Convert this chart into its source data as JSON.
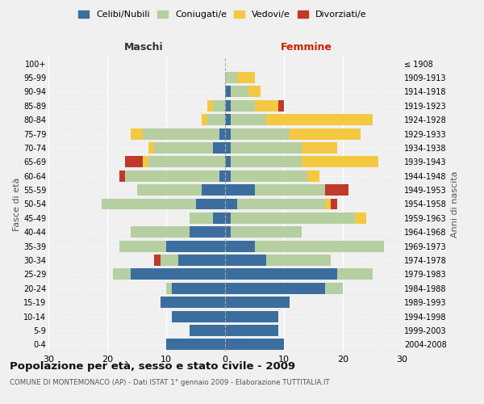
{
  "age_groups_bottom_to_top": [
    "0-4",
    "5-9",
    "10-14",
    "15-19",
    "20-24",
    "25-29",
    "30-34",
    "35-39",
    "40-44",
    "45-49",
    "50-54",
    "55-59",
    "60-64",
    "65-69",
    "70-74",
    "75-79",
    "80-84",
    "85-89",
    "90-94",
    "95-99",
    "100+"
  ],
  "birth_years_bottom_to_top": [
    "2004-2008",
    "1999-2003",
    "1994-1998",
    "1989-1993",
    "1984-1988",
    "1979-1983",
    "1974-1978",
    "1969-1973",
    "1964-1968",
    "1959-1963",
    "1954-1958",
    "1949-1953",
    "1944-1948",
    "1939-1943",
    "1934-1938",
    "1929-1933",
    "1924-1928",
    "1919-1923",
    "1914-1918",
    "1909-1913",
    "≤ 1908"
  ],
  "colors": {
    "celibi": "#3b6e9e",
    "coniugati": "#b5cfa0",
    "vedovi": "#f5c842",
    "divorziati": "#c0392b"
  },
  "males_bottom_to_top": {
    "celibi": [
      10,
      6,
      9,
      11,
      9,
      16,
      8,
      10,
      6,
      2,
      5,
      4,
      1,
      0,
      2,
      1,
      0,
      0,
      0,
      0,
      0
    ],
    "coniugati": [
      0,
      0,
      0,
      0,
      1,
      3,
      3,
      8,
      10,
      4,
      16,
      11,
      16,
      13,
      10,
      13,
      3,
      2,
      0,
      0,
      0
    ],
    "vedovi": [
      0,
      0,
      0,
      0,
      0,
      0,
      0,
      0,
      0,
      0,
      0,
      0,
      0,
      1,
      1,
      2,
      1,
      1,
      0,
      0,
      0
    ],
    "divorziati": [
      0,
      0,
      0,
      0,
      0,
      0,
      1,
      0,
      0,
      0,
      0,
      0,
      1,
      3,
      0,
      0,
      0,
      0,
      0,
      0,
      0
    ]
  },
  "females_bottom_to_top": {
    "celibi": [
      10,
      9,
      9,
      11,
      17,
      19,
      7,
      5,
      1,
      1,
      2,
      5,
      1,
      1,
      1,
      1,
      1,
      1,
      1,
      0,
      0
    ],
    "coniugati": [
      0,
      0,
      0,
      0,
      3,
      6,
      11,
      22,
      12,
      21,
      15,
      12,
      13,
      12,
      12,
      10,
      6,
      4,
      3,
      2,
      0
    ],
    "vedovi": [
      0,
      0,
      0,
      0,
      0,
      0,
      0,
      0,
      0,
      2,
      1,
      0,
      2,
      13,
      6,
      12,
      18,
      4,
      2,
      3,
      0
    ],
    "divorziati": [
      0,
      0,
      0,
      0,
      0,
      0,
      0,
      0,
      0,
      0,
      1,
      4,
      0,
      0,
      0,
      0,
      0,
      1,
      0,
      0,
      0
    ]
  },
  "title": "Popolazione per età, sesso e stato civile - 2009",
  "subtitle": "COMUNE DI MONTEMONACO (AP) - Dati ISTAT 1° gennaio 2009 - Elaborazione TUTTITALIA.IT",
  "xlabel_left": "Maschi",
  "xlabel_right": "Femmine",
  "ylabel_left": "Fasce di età",
  "ylabel_right": "Anni di nascita",
  "xlim": 30,
  "background_color": "#f0f0f0",
  "legend_labels": [
    "Celibi/Nubili",
    "Coniugati/e",
    "Vedovi/e",
    "Divorziati/e"
  ]
}
